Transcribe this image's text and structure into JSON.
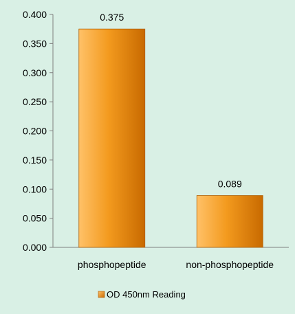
{
  "chart_data": {
    "type": "bar",
    "categories": [
      "phosphopeptide",
      "non-phosphopeptide"
    ],
    "series": [
      {
        "name": "OD 450nm Reading",
        "values": [
          0.375,
          0.089
        ]
      }
    ],
    "data_labels": [
      "0.375",
      "0.089"
    ],
    "yticks": [
      "0.000",
      "0.050",
      "0.100",
      "0.150",
      "0.200",
      "0.250",
      "0.300",
      "0.350",
      "0.400"
    ],
    "ylim": [
      0,
      0.4
    ],
    "grid": false,
    "legend": "bottom",
    "colors": {
      "bar_light": "#ffc168",
      "bar_mid": "#f39a1e",
      "bar_dark": "#c86a00",
      "background": "#d9f0e5",
      "axis": "#7f7f7f"
    }
  }
}
